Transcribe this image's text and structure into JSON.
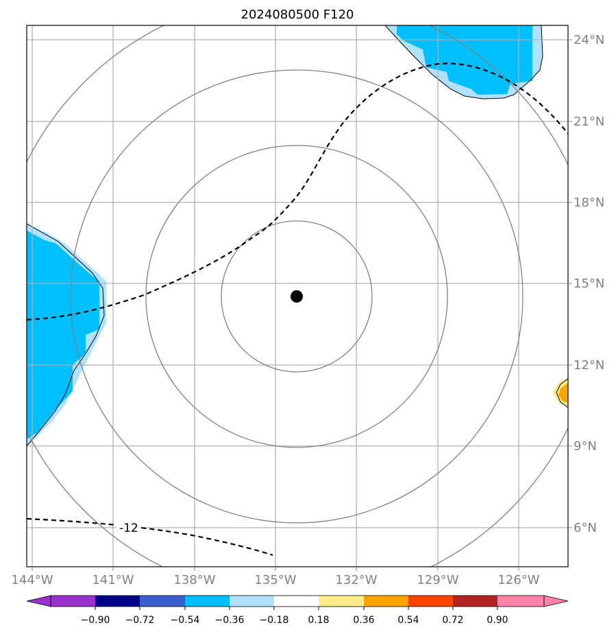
{
  "title": "2024080500 F120",
  "map": {
    "lat_labels": [
      "24°N",
      "21°N",
      "18°N",
      "15°N",
      "12°N",
      "9°N",
      "6°N"
    ],
    "lon_labels": [
      "144°W",
      "141°W",
      "138°W",
      "135°W",
      "132°W",
      "129°W",
      "126°W"
    ],
    "center_marker": {
      "lon": -134.3,
      "lat": 14.6,
      "color": "#000000"
    },
    "contour_label": "-12"
  },
  "colorbar": {
    "colors": [
      "#9932cc",
      "#00008b",
      "#3a5fcd",
      "#00bfff",
      "#b0e2ff",
      "#ffffff",
      "#ffec8b",
      "#ffa500",
      "#ff4500",
      "#b22222",
      "#ff82ab"
    ],
    "ticks": [
      "−0.90",
      "−0.72",
      "−0.54",
      "−0.36",
      "−0.18",
      "0.18",
      "0.36",
      "0.54",
      "0.72",
      "0.90"
    ]
  }
}
